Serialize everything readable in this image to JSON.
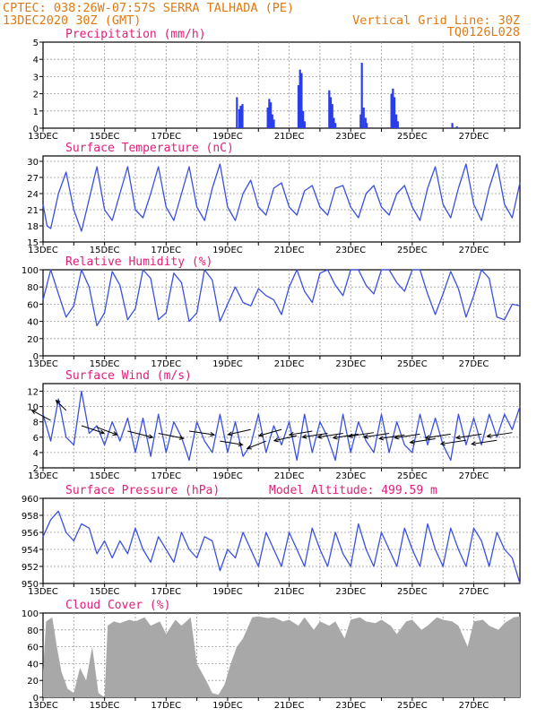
{
  "header": {
    "line1_left": "CPTEC:  038:26W-07:57S  SERRA TALHADA (PE)",
    "line2_left": "13DEC2020 30Z (GMT)",
    "line2_right": "Vertical Grid Line: 30Z",
    "line3_right": "TQ0126L028"
  },
  "colors": {
    "line": "#3a50e0",
    "bar": "#2a3ee8",
    "cloud": "#a8a8a8",
    "title": "#e0207a",
    "header": "#e07a10"
  },
  "chart_data": [
    {
      "id": "precip",
      "type": "bar",
      "title": "Precipitation (mm/h)",
      "ylim": [
        0,
        5
      ],
      "yticks": [
        0,
        1,
        2,
        3,
        4,
        5
      ],
      "xlim": [
        0,
        15.5
      ],
      "xticks": [
        "13DEC",
        "15DEC",
        "17DEC",
        "19DEC",
        "21DEC",
        "23DEC",
        "25DEC",
        "27DEC"
      ],
      "x": [
        6.3,
        6.38,
        6.42,
        6.48,
        7.3,
        7.35,
        7.4,
        7.45,
        7.5,
        8.3,
        8.35,
        8.4,
        8.45,
        8.5,
        9.3,
        9.35,
        9.4,
        9.45,
        9.5,
        10.32,
        10.36,
        10.42,
        10.48,
        10.52,
        11.32,
        11.37,
        11.42,
        11.48,
        11.53,
        13.3,
        13.45
      ],
      "values": [
        1.8,
        1.1,
        1.3,
        1.4,
        1.2,
        1.7,
        1.5,
        0.8,
        0.5,
        2.5,
        3.4,
        3.2,
        1.0,
        0.4,
        2.2,
        1.8,
        1.4,
        0.6,
        0.3,
        0.8,
        3.8,
        1.2,
        0.6,
        0.3,
        2.0,
        2.3,
        1.8,
        0.8,
        0.4,
        0.3,
        0.1
      ]
    },
    {
      "id": "temp",
      "type": "line",
      "title": "Surface Temperature (nC)",
      "ylim": [
        15,
        31
      ],
      "yticks": [
        15,
        18,
        21,
        24,
        27,
        30
      ],
      "xlim": [
        0,
        15.5
      ],
      "xticks": [
        "13DEC",
        "15DEC",
        "17DEC",
        "19DEC",
        "21DEC",
        "23DEC",
        "25DEC",
        "27DEC"
      ],
      "x": [
        0,
        0.13,
        0.25,
        0.5,
        0.75,
        1,
        1.25,
        1.5,
        1.75,
        2,
        2.25,
        2.5,
        2.75,
        3,
        3.25,
        3.5,
        3.75,
        4,
        4.25,
        4.5,
        4.75,
        5,
        5.25,
        5.5,
        5.75,
        6,
        6.25,
        6.5,
        6.75,
        7,
        7.25,
        7.5,
        7.75,
        8,
        8.25,
        8.5,
        8.75,
        9,
        9.25,
        9.5,
        9.75,
        10,
        10.25,
        10.5,
        10.75,
        11,
        11.25,
        11.5,
        11.75,
        12,
        12.25,
        12.5,
        12.75,
        13,
        13.25,
        13.5,
        13.75,
        14,
        14.25,
        14.5,
        14.75,
        15,
        15.25,
        15.5
      ],
      "values": [
        22,
        18,
        17.5,
        24,
        28,
        21,
        17,
        23,
        29,
        21,
        19,
        24,
        29,
        21,
        19.5,
        24,
        29,
        21.5,
        19,
        24,
        29,
        21.5,
        19,
        25,
        29.5,
        21.5,
        19,
        24,
        26.5,
        21.5,
        20,
        25,
        26,
        21.5,
        20,
        24.5,
        25.5,
        21.5,
        20,
        25,
        25.5,
        21.5,
        19.5,
        24,
        25.5,
        21.5,
        20,
        24,
        25.5,
        21.5,
        19,
        25,
        29,
        22,
        19.5,
        25,
        29.5,
        22,
        19,
        25,
        29.5,
        22,
        19.5,
        26
      ]
    },
    {
      "id": "rh",
      "type": "line",
      "title": "Relative Humidity (%)",
      "ylim": [
        0,
        100
      ],
      "yticks": [
        0,
        20,
        40,
        60,
        80,
        100
      ],
      "xlim": [
        0,
        15.5
      ],
      "xticks": [
        "13DEC",
        "15DEC",
        "17DEC",
        "19DEC",
        "21DEC",
        "23DEC",
        "25DEC",
        "27DEC"
      ],
      "x": [
        0,
        0.25,
        0.5,
        0.75,
        1,
        1.25,
        1.5,
        1.75,
        2,
        2.25,
        2.5,
        2.75,
        3,
        3.25,
        3.5,
        3.75,
        4,
        4.25,
        4.5,
        4.75,
        5,
        5.25,
        5.5,
        5.75,
        6,
        6.25,
        6.5,
        6.75,
        7,
        7.25,
        7.5,
        7.75,
        8,
        8.25,
        8.5,
        8.75,
        9,
        9.25,
        9.5,
        9.75,
        10,
        10.25,
        10.5,
        10.75,
        11,
        11.25,
        11.5,
        11.75,
        12,
        12.25,
        12.5,
        12.75,
        13,
        13.25,
        13.5,
        13.75,
        14,
        14.25,
        14.5,
        14.75,
        15,
        15.25,
        15.5
      ],
      "values": [
        65,
        100,
        72,
        45,
        58,
        100,
        80,
        35,
        50,
        98,
        82,
        42,
        55,
        100,
        90,
        42,
        50,
        96,
        85,
        40,
        50,
        100,
        88,
        40,
        60,
        80,
        62,
        58,
        78,
        70,
        65,
        48,
        80,
        100,
        75,
        62,
        96,
        100,
        82,
        70,
        100,
        100,
        82,
        72,
        100,
        100,
        85,
        75,
        100,
        100,
        72,
        48,
        72,
        98,
        78,
        45,
        70,
        100,
        90,
        45,
        42,
        60,
        58
      ]
    },
    {
      "id": "wind",
      "type": "line",
      "title": "Surface Wind (m/s)",
      "ylim": [
        2,
        13
      ],
      "yticks": [
        2,
        4,
        6,
        8,
        10,
        12
      ],
      "xlim": [
        0,
        15.5
      ],
      "xticks": [
        "13DEC",
        "15DEC",
        "17DEC",
        "19DEC",
        "21DEC",
        "23DEC",
        "25DEC",
        "27DEC"
      ],
      "x": [
        0,
        0.25,
        0.5,
        0.75,
        1,
        1.25,
        1.5,
        1.75,
        2,
        2.25,
        2.5,
        2.75,
        3,
        3.25,
        3.5,
        3.75,
        4,
        4.25,
        4.5,
        4.75,
        5,
        5.25,
        5.5,
        5.75,
        6,
        6.25,
        6.5,
        6.75,
        7,
        7.25,
        7.5,
        7.75,
        8,
        8.25,
        8.5,
        8.75,
        9,
        9.25,
        9.5,
        9.75,
        10,
        10.25,
        10.5,
        10.75,
        11,
        11.25,
        11.5,
        11.75,
        12,
        12.25,
        12.5,
        12.75,
        13,
        13.25,
        13.5,
        13.75,
        14,
        14.25,
        14.5,
        14.75,
        15,
        15.25,
        15.5
      ],
      "values": [
        9,
        5.5,
        11,
        6,
        5,
        12,
        6.5,
        7.5,
        5,
        8,
        5.5,
        8.5,
        4,
        8.5,
        3.5,
        9,
        4,
        8,
        6,
        3,
        8,
        5.5,
        4,
        9,
        4,
        8,
        3.5,
        5,
        9,
        4,
        7.5,
        5,
        8,
        3,
        9,
        4,
        8,
        6,
        3,
        9,
        4,
        8,
        5.5,
        4,
        9,
        4,
        8,
        5,
        4,
        9,
        5,
        8.5,
        5,
        3,
        9,
        5,
        8.5,
        5,
        9,
        6,
        9,
        7,
        10
      ]
    },
    {
      "id": "pressure",
      "type": "line",
      "title": "Surface Pressure (hPa)",
      "subtitle": "Model Altitude: 499.59 m",
      "ylim": [
        950,
        960
      ],
      "yticks": [
        950,
        952,
        954,
        956,
        958,
        960
      ],
      "xlim": [
        0,
        15.5
      ],
      "xticks": [
        "13DEC",
        "15DEC",
        "17DEC",
        "19DEC",
        "21DEC",
        "23DEC",
        "25DEC",
        "27DEC"
      ],
      "x": [
        0,
        0.25,
        0.5,
        0.75,
        1,
        1.25,
        1.5,
        1.75,
        2,
        2.25,
        2.5,
        2.75,
        3,
        3.25,
        3.5,
        3.75,
        4,
        4.25,
        4.5,
        4.75,
        5,
        5.25,
        5.5,
        5.75,
        6,
        6.25,
        6.5,
        6.75,
        7,
        7.25,
        7.5,
        7.75,
        8,
        8.25,
        8.5,
        8.75,
        9,
        9.25,
        9.5,
        9.75,
        10,
        10.25,
        10.5,
        10.75,
        11,
        11.25,
        11.5,
        11.75,
        12,
        12.25,
        12.5,
        12.75,
        13,
        13.25,
        13.5,
        13.75,
        14,
        14.25,
        14.5,
        14.75,
        15,
        15.25,
        15.5
      ],
      "values": [
        955.5,
        957.5,
        958.5,
        956,
        955,
        957,
        956.5,
        953.5,
        955,
        953,
        955,
        953.5,
        956.5,
        954,
        952.5,
        955.5,
        954,
        952.5,
        956,
        954,
        953,
        955.5,
        955,
        951.5,
        954,
        953,
        956,
        954,
        952,
        956,
        954,
        952,
        956,
        954,
        952,
        956.5,
        954,
        952,
        956,
        953.5,
        952,
        957,
        954,
        952,
        956,
        954,
        952,
        956.5,
        954,
        952,
        957,
        954,
        952,
        956.5,
        954,
        952,
        956.5,
        955,
        952,
        956,
        954,
        953,
        950
      ]
    },
    {
      "id": "cloud",
      "type": "area",
      "title": "Cloud Cover (%)",
      "ylim": [
        0,
        100
      ],
      "yticks": [
        0,
        20,
        40,
        60,
        80,
        100
      ],
      "xlim": [
        0,
        15.5
      ],
      "xticks": [
        "13DEC",
        "15DEC",
        "17DEC",
        "19DEC",
        "21DEC",
        "23DEC",
        "25DEC",
        "27DEC"
      ],
      "x": [
        0,
        0.1,
        0.3,
        0.45,
        0.6,
        0.8,
        1.0,
        1.2,
        1.4,
        1.6,
        1.8,
        2.0,
        2.1,
        2.3,
        2.5,
        2.8,
        3.0,
        3.3,
        3.5,
        3.8,
        4.0,
        4.3,
        4.5,
        4.8,
        5.0,
        5.3,
        5.5,
        5.7,
        5.9,
        6.1,
        6.3,
        6.5,
        6.8,
        7.0,
        7.3,
        7.5,
        7.8,
        8.0,
        8.3,
        8.5,
        8.8,
        9.0,
        9.3,
        9.5,
        9.8,
        10.0,
        10.3,
        10.5,
        10.8,
        11.0,
        11.3,
        11.5,
        11.8,
        12.0,
        12.3,
        12.5,
        12.8,
        13.0,
        13.3,
        13.5,
        13.8,
        14.0,
        14.3,
        14.5,
        14.8,
        15.0,
        15.3,
        15.5
      ],
      "values": [
        30,
        90,
        95,
        60,
        30,
        10,
        5,
        35,
        20,
        60,
        5,
        0,
        85,
        90,
        88,
        92,
        90,
        95,
        85,
        90,
        75,
        92,
        85,
        95,
        40,
        20,
        5,
        3,
        15,
        40,
        60,
        70,
        95,
        96,
        94,
        95,
        90,
        92,
        85,
        95,
        80,
        90,
        85,
        90,
        70,
        92,
        95,
        90,
        88,
        92,
        85,
        75,
        90,
        92,
        80,
        85,
        95,
        92,
        90,
        85,
        60,
        90,
        92,
        85,
        80,
        88,
        95,
        96
      ]
    }
  ],
  "wind_vectors": {
    "x": [
      0.25,
      0.75,
      1.25,
      1.75,
      2.75,
      3.75,
      4.75,
      5.75,
      6.75,
      7.25,
      7.75,
      8.25,
      8.75,
      9.25,
      9.75,
      10.25,
      10.75,
      11.25,
      11.75,
      12.25,
      12.75,
      13.25,
      13.75,
      14.25,
      14.75,
      15.25
    ],
    "y": [
      8.2,
      9.5,
      7.5,
      7.3,
      6.8,
      6.5,
      6.8,
      5.5,
      7.0,
      5.5,
      7.0,
      6.2,
      6.8,
      6.5,
      6.5,
      6.4,
      6.6,
      6.5,
      6.3,
      6.4,
      5.8,
      6.4,
      5.6,
      6.4,
      5.6,
      6.6
    ],
    "u": [
      -1.5,
      -0.8,
      1.8,
      1.6,
      2.0,
      2.0,
      2.0,
      1.8,
      -1.8,
      -1.5,
      -1.8,
      -1.8,
      -1.8,
      -2.0,
      -2.0,
      -2.0,
      -2.0,
      -2.0,
      -2.0,
      -2.0,
      -2.0,
      -2.0,
      -2.0,
      -2.0,
      -2.0,
      -2.0
    ],
    "v": [
      0.8,
      0.8,
      -0.6,
      -0.6,
      -0.5,
      -0.4,
      -0.3,
      -0.3,
      -0.4,
      -0.6,
      -0.5,
      -0.4,
      -0.3,
      -0.3,
      -0.3,
      -0.3,
      -0.3,
      -0.3,
      -0.3,
      -0.3,
      -0.3,
      -0.3,
      -0.3,
      -0.3,
      -0.3,
      -0.3
    ]
  }
}
